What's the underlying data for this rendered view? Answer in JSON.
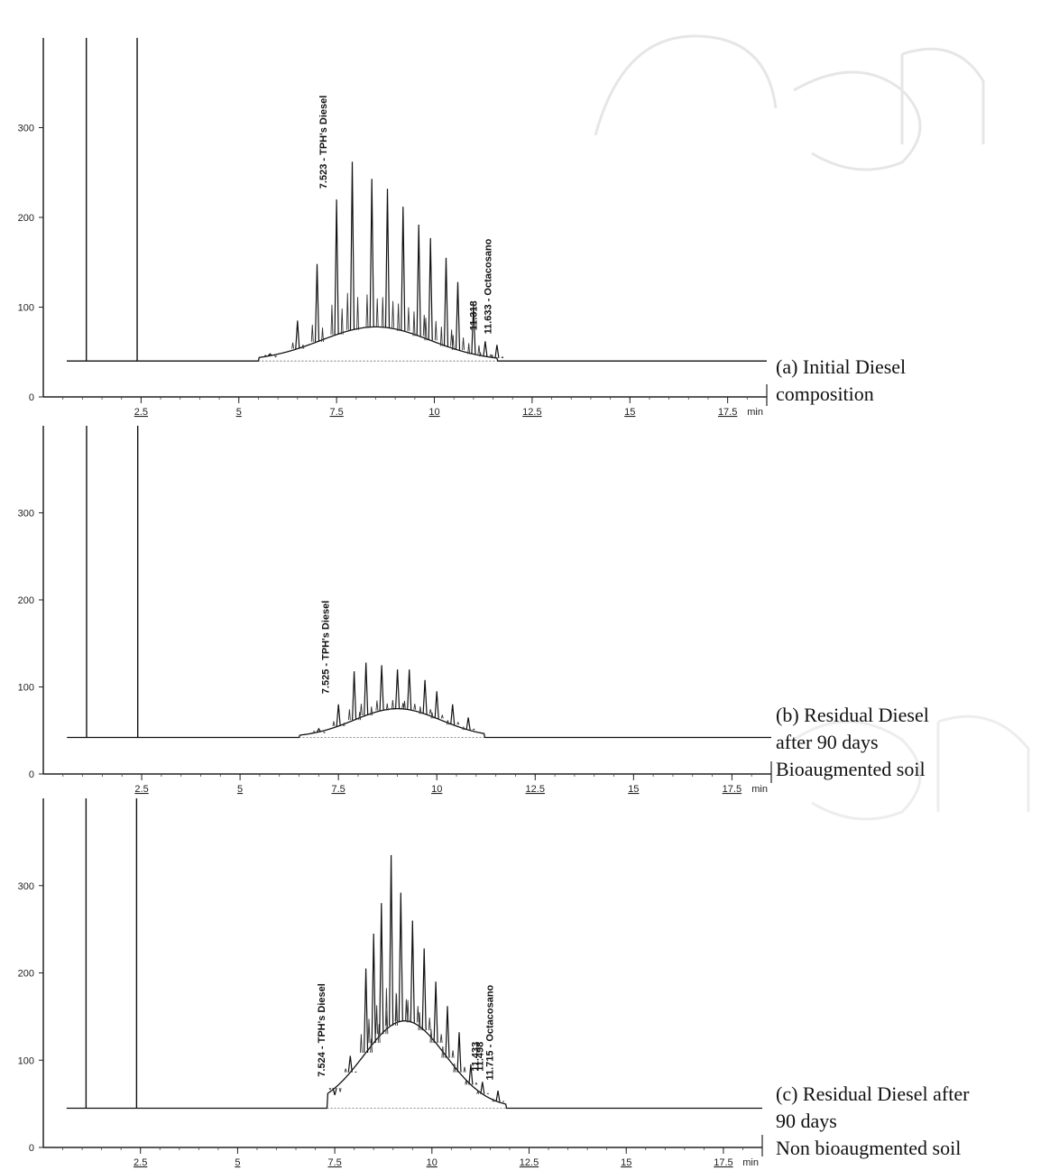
{
  "figure": {
    "panels": [
      {
        "caption_lines": [
          "(a)  Initial Diesel",
          "composition"
        ]
      },
      {
        "caption_lines": [
          "(b)  Residual Diesel",
          "after 90 days",
          "Bioaugmented soil"
        ]
      },
      {
        "caption_lines": [
          "(c)  Residual Diesel after",
          "90 days",
          "Non bioaugmented soil"
        ]
      }
    ]
  },
  "chart_data": [
    {
      "type": "line",
      "title": "",
      "xlabel": "min",
      "ylabel": "",
      "xlim": [
        0,
        18.5
      ],
      "ylim": [
        0,
        400
      ],
      "x_ticks": [
        "2.5",
        "5",
        "7.5",
        "10",
        "12.5",
        "15",
        "17.5"
      ],
      "y_ticks": [
        "0",
        "100",
        "200",
        "300"
      ],
      "baseline": 40,
      "solvent_peaks": [
        1.1,
        2.4
      ],
      "hump": {
        "center": 8.5,
        "width": 1.4,
        "height": 38,
        "start": 5.5,
        "end": 11.6
      },
      "peaks": [
        {
          "x": 5.8,
          "y": 48
        },
        {
          "x": 6.5,
          "y": 85
        },
        {
          "x": 7.0,
          "y": 148
        },
        {
          "x": 7.5,
          "y": 220
        },
        {
          "x": 7.9,
          "y": 262
        },
        {
          "x": 8.4,
          "y": 243
        },
        {
          "x": 8.8,
          "y": 232
        },
        {
          "x": 9.2,
          "y": 212
        },
        {
          "x": 9.6,
          "y": 192
        },
        {
          "x": 9.9,
          "y": 177
        },
        {
          "x": 10.3,
          "y": 155
        },
        {
          "x": 10.6,
          "y": 128
        },
        {
          "x": 11.0,
          "y": 103
        },
        {
          "x": 11.3,
          "y": 62
        },
        {
          "x": 11.6,
          "y": 58
        }
      ],
      "annotations": [
        {
          "x": 7.523,
          "label": "7.523 - TPH's Diesel"
        },
        {
          "x": 11.318,
          "label": "11.318"
        },
        {
          "x": 11.633,
          "label": "11.633 - Octacosano"
        }
      ]
    },
    {
      "type": "line",
      "title": "",
      "xlabel": "min",
      "ylabel": "",
      "xlim": [
        0,
        18.5
      ],
      "ylim": [
        0,
        400
      ],
      "x_ticks": [
        "2.5",
        "5",
        "7.5",
        "10",
        "12.5",
        "15",
        "17.5"
      ],
      "y_ticks": [
        "0",
        "100",
        "200",
        "300"
      ],
      "baseline": 42,
      "solvent_peaks": [
        1.1,
        2.4
      ],
      "hump": {
        "center": 9.0,
        "width": 1.1,
        "height": 33,
        "start": 6.5,
        "end": 11.2
      },
      "peaks": [
        {
          "x": 7.0,
          "y": 52
        },
        {
          "x": 7.5,
          "y": 80
        },
        {
          "x": 7.9,
          "y": 118
        },
        {
          "x": 8.2,
          "y": 128
        },
        {
          "x": 8.6,
          "y": 125
        },
        {
          "x": 9.0,
          "y": 120
        },
        {
          "x": 9.3,
          "y": 120
        },
        {
          "x": 9.7,
          "y": 108
        },
        {
          "x": 10.0,
          "y": 95
        },
        {
          "x": 10.4,
          "y": 80
        },
        {
          "x": 10.8,
          "y": 65
        }
      ],
      "annotations": [
        {
          "x": 7.525,
          "label": "7.525 - TPH's Diesel"
        }
      ]
    },
    {
      "type": "line",
      "title": "",
      "xlabel": "min",
      "ylabel": "",
      "xlim": [
        0,
        18.5
      ],
      "ylim": [
        0,
        400
      ],
      "x_ticks": [
        "2.5",
        "5",
        "7.5",
        "10",
        "12.5",
        "15",
        "17.5"
      ],
      "y_ticks": [
        "0",
        "100",
        "200",
        "300"
      ],
      "baseline": 45,
      "solvent_peaks": [
        1.1,
        2.4
      ],
      "hump": {
        "center": 9.3,
        "width": 1.05,
        "height": 100,
        "start": 7.3,
        "end": 11.9
      },
      "peaks": [
        {
          "x": 7.5,
          "y": 60
        },
        {
          "x": 7.9,
          "y": 105
        },
        {
          "x": 8.3,
          "y": 205
        },
        {
          "x": 8.5,
          "y": 245
        },
        {
          "x": 8.7,
          "y": 280
        },
        {
          "x": 8.95,
          "y": 335
        },
        {
          "x": 9.2,
          "y": 292
        },
        {
          "x": 9.5,
          "y": 260
        },
        {
          "x": 9.8,
          "y": 228
        },
        {
          "x": 10.1,
          "y": 190
        },
        {
          "x": 10.4,
          "y": 162
        },
        {
          "x": 10.7,
          "y": 132
        },
        {
          "x": 11.0,
          "y": 95
        },
        {
          "x": 11.3,
          "y": 75
        },
        {
          "x": 11.7,
          "y": 65
        }
      ],
      "annotations": [
        {
          "x": 7.524,
          "label": "7.524 - TPH's Diesel"
        },
        {
          "x": 11.43,
          "label": "11.433"
        },
        {
          "x": 11.5,
          "label": "11.498"
        },
        {
          "x": 11.715,
          "label": "11.715 - Octacosano"
        }
      ]
    }
  ]
}
